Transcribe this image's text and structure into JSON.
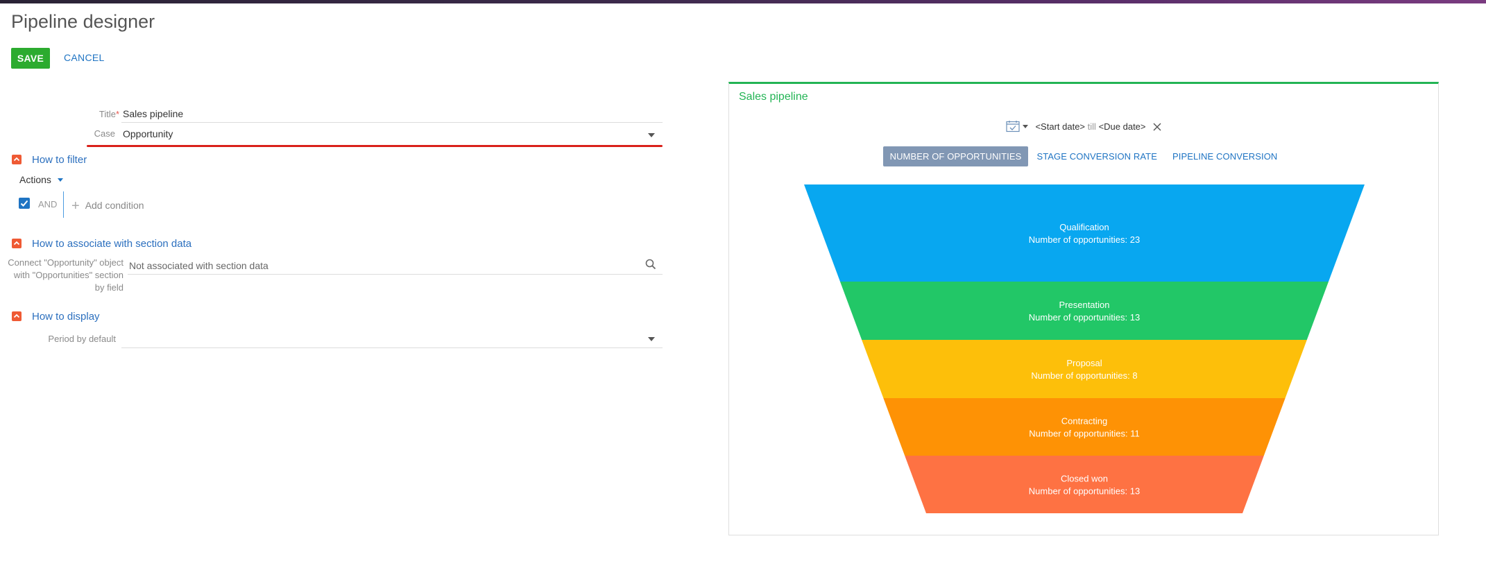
{
  "app": {
    "title": "Pipeline designer"
  },
  "toolbar": {
    "save_label": "SAVE",
    "cancel_label": "CANCEL"
  },
  "form": {
    "title_label": "Title",
    "title_required_mark": "*",
    "title_value": "Sales pipeline",
    "case_label": "Case",
    "case_value": "Opportunity"
  },
  "sections": {
    "filter": {
      "title": "How to filter",
      "actions_label": "Actions",
      "and_label": "AND",
      "add_condition_label": "Add condition"
    },
    "associate": {
      "title": "How to associate with section data",
      "connect_label": "Connect \"Opportunity\" object with \"Opportunities\" section by field",
      "connect_value": "Not associated with section data"
    },
    "display": {
      "title": "How to display",
      "period_label": "Period by default",
      "period_value": ""
    }
  },
  "dashboard": {
    "title": "Sales pipeline",
    "start_date": "<Start date>",
    "till_label": "till",
    "due_date": "<Due date>",
    "tabs": [
      {
        "label": "NUMBER OF OPPORTUNITIES",
        "active": true
      },
      {
        "label": "STAGE CONVERSION RATE",
        "active": false
      },
      {
        "label": "PIPELINE CONVERSION",
        "active": false
      }
    ]
  },
  "chart_data": {
    "type": "funnel",
    "value_label": "Number of opportunities",
    "stages": [
      {
        "name": "Qualification",
        "value": 23,
        "color": "#08a7f0"
      },
      {
        "name": "Presentation",
        "value": 13,
        "color": "#22c767"
      },
      {
        "name": "Proposal",
        "value": 8,
        "color": "#fdbf0a"
      },
      {
        "name": "Contracting",
        "value": 11,
        "color": "#fe9205"
      },
      {
        "name": "Closed won",
        "value": 13,
        "color": "#fe7243"
      }
    ]
  },
  "colors": {
    "accent_green": "#22b454",
    "save_button": "#2cab2f",
    "link_blue": "#1f74c3",
    "section_toggle": "#ef5a34",
    "active_tab": "#8197b4",
    "validation_red": "#d9201a"
  }
}
